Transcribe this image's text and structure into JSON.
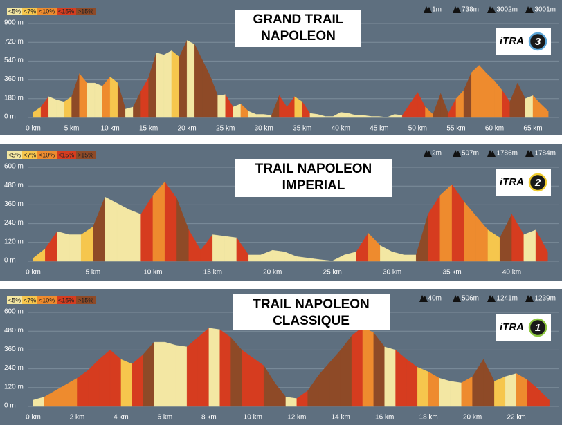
{
  "chart_data": [
    {
      "type": "area",
      "title": [
        "GRAND TRAIL",
        "NAPOLEON"
      ],
      "badge": "iTRA",
      "itra": "3",
      "stats": [
        "1m",
        "738m",
        "3002m",
        "3001m"
      ],
      "legend": [
        {
          "value": 5,
          "label": "<5%",
          "color": "#f3e7a3"
        },
        {
          "value": 7,
          "label": "<7%",
          "color": "#f6c64d"
        },
        {
          "value": 10,
          "label": "<10%",
          "color": "#ee8b2e"
        },
        {
          "value": 15,
          "label": "<15%",
          "color": "#d63c1f"
        },
        {
          "value": 15,
          "label": ">15%",
          "color": "#8e4a27"
        }
      ],
      "x": [
        0,
        1,
        2,
        3,
        4,
        5,
        6,
        7,
        8,
        9,
        10,
        11,
        12,
        13,
        14,
        15,
        16,
        17,
        18,
        19,
        20,
        21,
        22,
        23,
        24,
        25,
        26,
        27,
        28,
        29,
        30,
        31,
        32,
        33,
        34,
        35,
        36,
        37,
        38,
        39,
        40,
        41,
        42,
        43,
        44,
        45,
        46,
        47,
        48,
        49,
        50,
        51,
        52,
        53,
        54,
        55,
        56,
        57,
        58,
        59,
        60,
        61,
        62,
        63,
        64,
        65,
        66,
        67
      ],
      "values": [
        50,
        100,
        200,
        170,
        150,
        200,
        420,
        330,
        330,
        300,
        390,
        330,
        80,
        100,
        250,
        380,
        620,
        600,
        640,
        580,
        738,
        700,
        550,
        400,
        210,
        220,
        100,
        130,
        60,
        30,
        30,
        20,
        210,
        100,
        200,
        150,
        40,
        30,
        10,
        10,
        50,
        40,
        20,
        20,
        10,
        10,
        1,
        30,
        20,
        130,
        240,
        100,
        30,
        230,
        40,
        180,
        260,
        430,
        500,
        420,
        350,
        260,
        150,
        330,
        180,
        210,
        130,
        60
      ],
      "xlim": [
        0,
        67.7
      ],
      "ylim": [
        0,
        900
      ],
      "xticks": [
        {
          "value": 0,
          "label": "0 km"
        },
        {
          "value": 5,
          "label": "5 km"
        },
        {
          "value": 10,
          "label": "10 km"
        },
        {
          "value": 15,
          "label": "15 km"
        },
        {
          "value": 20,
          "label": "20 km"
        },
        {
          "value": 25,
          "label": "25 km"
        },
        {
          "value": 30,
          "label": "30 km"
        },
        {
          "value": 35,
          "label": "35 km"
        },
        {
          "value": 40,
          "label": "40 km"
        },
        {
          "value": 45,
          "label": "45 km"
        },
        {
          "value": 50,
          "label": "50 km"
        },
        {
          "value": 55,
          "label": "55 km"
        },
        {
          "value": 60,
          "label": "60 km"
        },
        {
          "value": 65,
          "label": "65 km"
        }
      ],
      "yticks": [
        {
          "value": 0,
          "label": "0 m"
        },
        {
          "value": 180,
          "label": "180 m"
        },
        {
          "value": 360,
          "label": "360 m"
        },
        {
          "value": 540,
          "label": "540 m"
        },
        {
          "value": 720,
          "label": "720 m"
        },
        {
          "value": 900,
          "label": "900 m"
        }
      ],
      "grid": true
    },
    {
      "type": "area",
      "title": [
        "TRAIL NAPOLEON",
        "IMPERIAL"
      ],
      "badge": "iTRA",
      "itra": "2",
      "stats": [
        "2m",
        "507m",
        "1786m",
        "1784m"
      ],
      "legend": [
        {
          "value": 5,
          "label": "<5%",
          "color": "#f3e7a3"
        },
        {
          "value": 7,
          "label": "<7%",
          "color": "#f6c64d"
        },
        {
          "value": 10,
          "label": "<10%",
          "color": "#ee8b2e"
        },
        {
          "value": 15,
          "label": "<15%",
          "color": "#d63c1f"
        },
        {
          "value": 15,
          "label": ">15%",
          "color": "#8e4a27"
        }
      ],
      "x": [
        0,
        1,
        2,
        3,
        4,
        5,
        6,
        7,
        8,
        9,
        10,
        11,
        12,
        13,
        14,
        15,
        16,
        17,
        18,
        19,
        20,
        21,
        22,
        23,
        24,
        25,
        26,
        27,
        28,
        29,
        30,
        31,
        32,
        33,
        34,
        35,
        36,
        37,
        38,
        39,
        40,
        41,
        42,
        43
      ],
      "values": [
        20,
        80,
        190,
        170,
        170,
        220,
        410,
        370,
        330,
        300,
        420,
        507,
        400,
        200,
        70,
        170,
        160,
        150,
        40,
        40,
        70,
        60,
        30,
        20,
        10,
        2,
        40,
        60,
        180,
        100,
        60,
        40,
        40,
        300,
        420,
        490,
        380,
        290,
        200,
        150,
        300,
        170,
        200,
        60
      ],
      "xlim": [
        0,
        43.5
      ],
      "ylim": [
        0,
        600
      ],
      "xticks": [
        {
          "value": 0,
          "label": "0 km"
        },
        {
          "value": 5,
          "label": "5 km"
        },
        {
          "value": 10,
          "label": "10 km"
        },
        {
          "value": 15,
          "label": "15 km"
        },
        {
          "value": 20,
          "label": "20 km"
        },
        {
          "value": 25,
          "label": "25 km"
        },
        {
          "value": 30,
          "label": "30 km"
        },
        {
          "value": 35,
          "label": "35 km"
        },
        {
          "value": 40,
          "label": "40 km"
        }
      ],
      "yticks": [
        {
          "value": 0,
          "label": "0 m"
        },
        {
          "value": 120,
          "label": "120 m"
        },
        {
          "value": 240,
          "label": "240 m"
        },
        {
          "value": 360,
          "label": "360 m"
        },
        {
          "value": 480,
          "label": "480 m"
        },
        {
          "value": 600,
          "label": "600 m"
        }
      ],
      "grid": true
    },
    {
      "type": "area",
      "title": [
        "TRAIL NAPOLEON",
        "CLASSIQUE"
      ],
      "badge": "iTRA",
      "itra": "1",
      "stats": [
        "40m",
        "506m",
        "1241m",
        "1239m"
      ],
      "legend": [
        {
          "value": 5,
          "label": "<5%",
          "color": "#f3e7a3"
        },
        {
          "value": 7,
          "label": "<7%",
          "color": "#f6c64d"
        },
        {
          "value": 10,
          "label": "<10%",
          "color": "#ee8b2e"
        },
        {
          "value": 15,
          "label": "<15%",
          "color": "#d63c1f"
        },
        {
          "value": 15,
          "label": ">15%",
          "color": "#8e4a27"
        }
      ],
      "x": [
        0,
        0.5,
        1,
        1.5,
        2,
        2.5,
        3,
        3.5,
        4,
        4.5,
        5,
        5.5,
        6,
        6.5,
        7,
        7.5,
        8,
        8.5,
        9,
        9.5,
        10,
        10.5,
        11,
        11.5,
        12,
        12.5,
        13,
        13.5,
        14,
        14.5,
        15,
        15.5,
        16,
        16.5,
        17,
        17.5,
        18,
        18.5,
        19,
        19.5,
        20,
        20.5,
        21,
        21.5,
        22,
        22.5,
        23,
        23.5
      ],
      "values": [
        40,
        60,
        100,
        140,
        180,
        230,
        300,
        360,
        300,
        270,
        330,
        410,
        410,
        390,
        380,
        440,
        500,
        490,
        440,
        360,
        310,
        260,
        150,
        60,
        50,
        100,
        200,
        280,
        360,
        450,
        506,
        470,
        380,
        360,
        300,
        250,
        220,
        180,
        160,
        150,
        190,
        300,
        160,
        190,
        210,
        170,
        110,
        40
      ],
      "xlim": [
        0,
        23.7
      ],
      "ylim": [
        0,
        600
      ],
      "xticks": [
        {
          "value": 0,
          "label": "0 km"
        },
        {
          "value": 2,
          "label": "2 km"
        },
        {
          "value": 4,
          "label": "4 km"
        },
        {
          "value": 6,
          "label": "6 km"
        },
        {
          "value": 8,
          "label": "8 km"
        },
        {
          "value": 10,
          "label": "10 km"
        },
        {
          "value": 12,
          "label": "12 km"
        },
        {
          "value": 14,
          "label": "14 km"
        },
        {
          "value": 16,
          "label": "16 km"
        },
        {
          "value": 18,
          "label": "18 km"
        },
        {
          "value": 20,
          "label": "20 km"
        },
        {
          "value": 22,
          "label": "22 km"
        }
      ],
      "yticks": [
        {
          "value": 0,
          "label": "0 m"
        },
        {
          "value": 120,
          "label": "120 m"
        },
        {
          "value": 240,
          "label": "240 m"
        },
        {
          "value": 360,
          "label": "360 m"
        },
        {
          "value": 480,
          "label": "480 m"
        },
        {
          "value": 600,
          "label": "600 m"
        }
      ],
      "grid": true
    }
  ]
}
